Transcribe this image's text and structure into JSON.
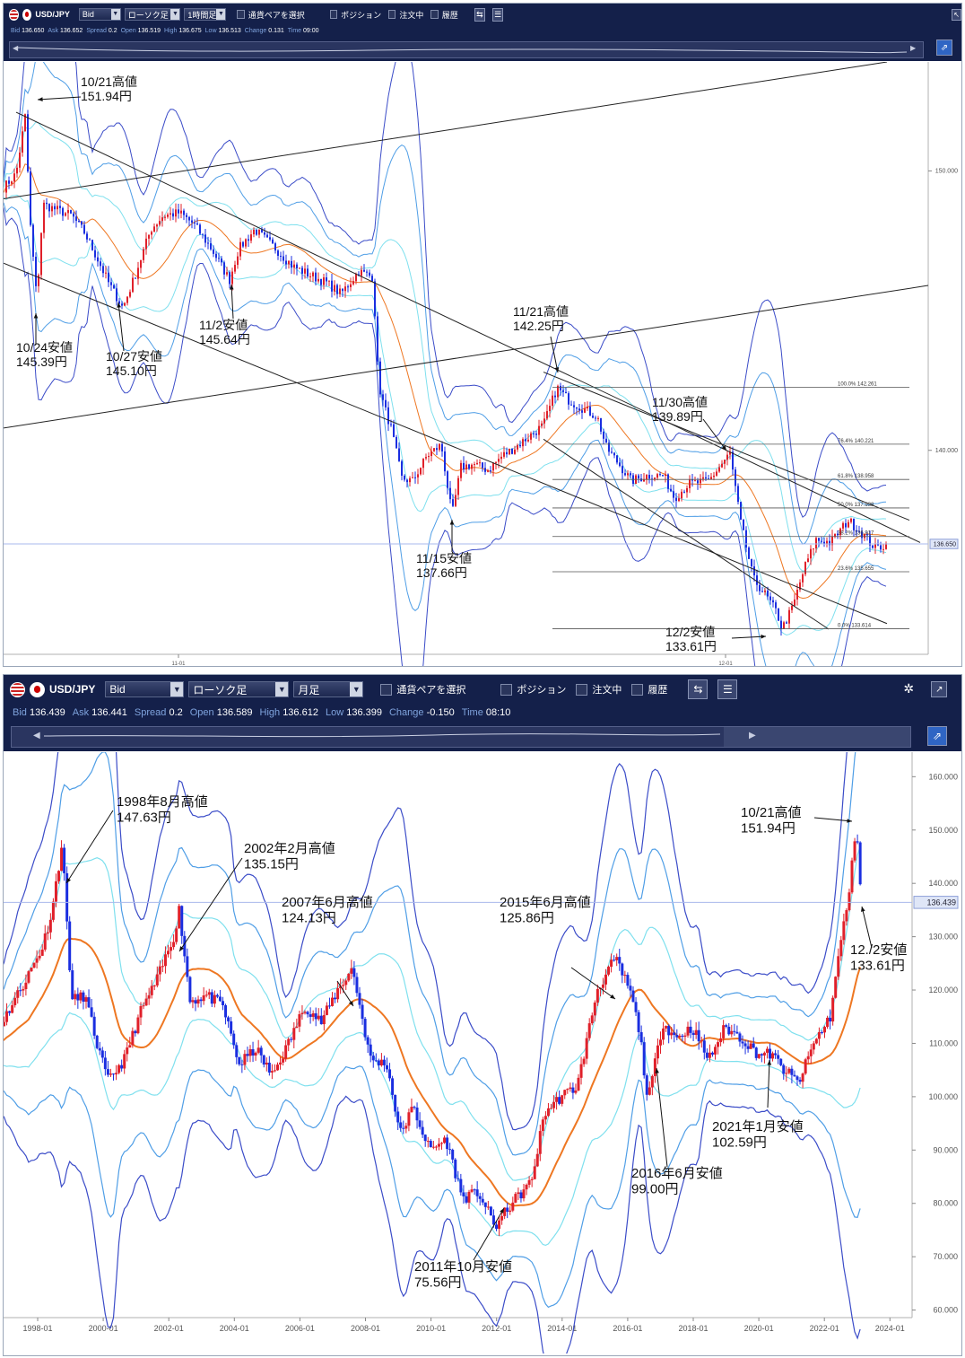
{
  "colors": {
    "toolbar_bg": "#14204a",
    "quote_key": "#7fa3dd",
    "candle_up": "#e0202a",
    "candle_down": "#1a2ee0",
    "sma": "#ee7722",
    "band1": "#7fe0ee",
    "band2": "#4f9ee6",
    "band3": "#3b4cc8",
    "price_line": "#aab8ec",
    "trend": "#222222"
  },
  "panel1": {
    "toolbar": {
      "pair": "USD/JPY",
      "side": "Bid",
      "chart_type": "ローソク足",
      "timeframe": "1時間足",
      "select_pair": "通貨ペアを選択",
      "position": "ポジション",
      "orders": "注文中",
      "history": "履歴",
      "quote": [
        {
          "k": "Bid",
          "v": "136.650"
        },
        {
          "k": "Ask",
          "v": "136.652"
        },
        {
          "k": "Spread",
          "v": "0.2"
        },
        {
          "k": "Open",
          "v": "136.519"
        },
        {
          "k": "High",
          "v": "136.675"
        },
        {
          "k": "Low",
          "v": "136.513"
        },
        {
          "k": "Change",
          "v": "0.131"
        },
        {
          "k": "Time",
          "v": "09:00"
        }
      ]
    }
  },
  "panel2": {
    "toolbar": {
      "pair": "USD/JPY",
      "side": "Bid",
      "chart_type": "ローソク足",
      "timeframe": "月足",
      "select_pair": "通貨ペアを選択",
      "position": "ポジション",
      "orders": "注文中",
      "history": "履歴",
      "quote": [
        {
          "k": "Bid",
          "v": "136.439"
        },
        {
          "k": "Ask",
          "v": "136.441"
        },
        {
          "k": "Spread",
          "v": "0.2"
        },
        {
          "k": "Open",
          "v": "136.589"
        },
        {
          "k": "High",
          "v": "136.612"
        },
        {
          "k": "Low",
          "v": "136.399"
        },
        {
          "k": "Change",
          "v": "-0.150"
        },
        {
          "k": "Time",
          "v": "08:10"
        }
      ]
    }
  },
  "chart_data": [
    {
      "type": "candlestick",
      "timeframe": "1時間足",
      "ylim": [
        132.7,
        153.9
      ],
      "y_ticks": [
        "150.000",
        "140.000"
      ],
      "x_ticks": [
        "11-01",
        "12-01"
      ],
      "current_price": "136.650",
      "bands": "bollinger bands (±1σ, ±2σ, ±3σ) with SMA",
      "path": [
        [
          0,
          149.4
        ],
        [
          14,
          149.9
        ],
        [
          24,
          151.94
        ],
        [
          30,
          148.0
        ],
        [
          37,
          145.39
        ],
        [
          44,
          148.8
        ],
        [
          60,
          148.6
        ],
        [
          76,
          148.4
        ],
        [
          90,
          147.8
        ],
        [
          104,
          146.9
        ],
        [
          117,
          146.0
        ],
        [
          133,
          145.1
        ],
        [
          146,
          146.2
        ],
        [
          164,
          147.9
        ],
        [
          178,
          148.4
        ],
        [
          196,
          148.5
        ],
        [
          212,
          148.1
        ],
        [
          232,
          147.2
        ],
        [
          252,
          146.1
        ],
        [
          262,
          147.2
        ],
        [
          280,
          147.9
        ],
        [
          304,
          147.2
        ],
        [
          322,
          146.6
        ],
        [
          340,
          146.3
        ],
        [
          360,
          146.0
        ],
        [
          376,
          145.6
        ],
        [
          396,
          146.4
        ],
        [
          412,
          146.2
        ],
        [
          418,
          142.4
        ],
        [
          424,
          141.6
        ],
        [
          432,
          140.8
        ],
        [
          444,
          139.0
        ],
        [
          456,
          138.9
        ],
        [
          472,
          139.8
        ],
        [
          488,
          140.2
        ],
        [
          500,
          137.66
        ],
        [
          510,
          139.4
        ],
        [
          524,
          139.5
        ],
        [
          540,
          139.3
        ],
        [
          556,
          139.8
        ],
        [
          570,
          140.1
        ],
        [
          586,
          140.5
        ],
        [
          602,
          140.9
        ],
        [
          617,
          142.25
        ],
        [
          630,
          141.8
        ],
        [
          646,
          141.5
        ],
        [
          662,
          141.2
        ],
        [
          672,
          140.1
        ],
        [
          684,
          139.6
        ],
        [
          700,
          138.9
        ],
        [
          718,
          139.1
        ],
        [
          736,
          139.1
        ],
        [
          748,
          138.3
        ],
        [
          764,
          138.8
        ],
        [
          786,
          138.9
        ],
        [
          810,
          139.89
        ],
        [
          822,
          137.4
        ],
        [
          836,
          135.4
        ],
        [
          848,
          134.9
        ],
        [
          862,
          134.2
        ],
        [
          868,
          133.61
        ],
        [
          880,
          134.4
        ],
        [
          893,
          135.8
        ],
        [
          906,
          136.8
        ],
        [
          922,
          136.7
        ],
        [
          942,
          137.5
        ],
        [
          958,
          137.0
        ],
        [
          972,
          136.5
        ],
        [
          986,
          136.65
        ]
      ],
      "fibonacci": [
        {
          "label": "100.0%",
          "value": "142.261"
        },
        {
          "label": "76.4%",
          "value": "140.221"
        },
        {
          "label": "61.8%",
          "value": "138.958"
        },
        {
          "label": "50.0%",
          "value": "137.938"
        },
        {
          "label": "38.2%",
          "value": "136.917"
        },
        {
          "label": "23.6%",
          "value": "135.655"
        },
        {
          "label": "0.0%",
          "value": "133.614"
        }
      ],
      "annotations": [
        {
          "lines": [
            "10/21高値",
            "151.94円"
          ],
          "value": 151.94
        },
        {
          "lines": [
            "10/24安値",
            "145.39円"
          ],
          "value": 145.39
        },
        {
          "lines": [
            "10/27安値",
            "145.10円"
          ],
          "value": 145.1
        },
        {
          "lines": [
            "11/2安値",
            "145.64円"
          ],
          "value": 145.64
        },
        {
          "lines": [
            "11/21高値",
            "142.25円"
          ],
          "value": 142.25
        },
        {
          "lines": [
            "11/30高値",
            "139.89円"
          ],
          "value": 139.89
        },
        {
          "lines": [
            "11/15安値",
            "137.66円"
          ],
          "value": 137.66
        },
        {
          "lines": [
            "12/2安値",
            "133.61円"
          ],
          "value": 133.61
        }
      ]
    },
    {
      "type": "candlestick",
      "timeframe": "月足",
      "ylim": [
        56.9,
        164.6
      ],
      "y_ticks": [
        "160.000",
        "150.000",
        "140.000",
        "130.000",
        "120.000",
        "110.000",
        "100.000",
        "90.000",
        "80.000",
        "70.000",
        "60.000"
      ],
      "x_ticks": [
        "1998-01",
        "2000-01",
        "2002-01",
        "2004-01",
        "2006-01",
        "2008-01",
        "2010-01",
        "2012-01",
        "2014-01",
        "2016-01",
        "2018-01",
        "2020-01",
        "2022-01",
        "2024-01"
      ],
      "current_price": "136.439",
      "bands": "bollinger bands (±1σ, ±2σ, ±3σ) with SMA",
      "path": [
        [
          1996.0,
          108.0
        ],
        [
          1996.6,
          112.0
        ],
        [
          1997.0,
          116.5
        ],
        [
          1997.5,
          122.0
        ],
        [
          1998.0,
          128.0
        ],
        [
          1998.3,
          135.0
        ],
        [
          1998.6,
          147.63
        ],
        [
          1998.9,
          118.0
        ],
        [
          1999.3,
          119.0
        ],
        [
          1999.7,
          109.0
        ],
        [
          2000.0,
          103.0
        ],
        [
          2000.5,
          107.0
        ],
        [
          2001.0,
          116.0
        ],
        [
          2001.5,
          122.0
        ],
        [
          2002.0,
          130.0
        ],
        [
          2002.17,
          135.15
        ],
        [
          2002.5,
          118.0
        ],
        [
          2003.0,
          119.0
        ],
        [
          2003.5,
          117.0
        ],
        [
          2004.0,
          106.0
        ],
        [
          2004.5,
          109.0
        ],
        [
          2005.0,
          104.0
        ],
        [
          2005.5,
          110.0
        ],
        [
          2006.0,
          117.0
        ],
        [
          2006.5,
          114.0
        ],
        [
          2007.0,
          120.0
        ],
        [
          2007.45,
          124.13
        ],
        [
          2007.8,
          113.0
        ],
        [
          2008.0,
          107.0
        ],
        [
          2008.5,
          106.0
        ],
        [
          2008.9,
          93.0
        ],
        [
          2009.3,
          98.0
        ],
        [
          2009.8,
          90.0
        ],
        [
          2010.3,
          92.0
        ],
        [
          2010.8,
          81.0
        ],
        [
          2011.3,
          82.0
        ],
        [
          2011.79,
          75.56
        ],
        [
          2012.3,
          80.0
        ],
        [
          2012.9,
          84.0
        ],
        [
          2013.3,
          97.0
        ],
        [
          2013.8,
          100.0
        ],
        [
          2014.3,
          102.0
        ],
        [
          2014.9,
          120.0
        ],
        [
          2015.45,
          125.86
        ],
        [
          2015.9,
          120.0
        ],
        [
          2016.2,
          112.0
        ],
        [
          2016.45,
          99.0
        ],
        [
          2016.9,
          114.0
        ],
        [
          2017.3,
          111.0
        ],
        [
          2017.8,
          113.0
        ],
        [
          2018.3,
          107.0
        ],
        [
          2018.8,
          113.0
        ],
        [
          2019.3,
          111.0
        ],
        [
          2019.8,
          108.0
        ],
        [
          2020.2,
          108.0
        ],
        [
          2020.6,
          105.0
        ],
        [
          2021.04,
          102.59
        ],
        [
          2021.5,
          110.0
        ],
        [
          2022.0,
          115.0
        ],
        [
          2022.3,
          128.0
        ],
        [
          2022.6,
          139.0
        ],
        [
          2022.8,
          151.94
        ],
        [
          2022.95,
          136.44
        ]
      ],
      "annotations": [
        {
          "lines": [
            "1998年8月高値",
            "147.63円"
          ],
          "value": 147.63
        },
        {
          "lines": [
            "2002年2月高値",
            "135.15円"
          ],
          "value": 135.15
        },
        {
          "lines": [
            "2007年6月高値",
            "124.13円"
          ],
          "value": 124.13
        },
        {
          "lines": [
            "2015年6月高値",
            "125.86円"
          ],
          "value": 125.86
        },
        {
          "lines": [
            "10/21高値",
            "151.94円"
          ],
          "value": 151.94
        },
        {
          "lines": [
            "12./2安値",
            "133.61円"
          ],
          "value": 133.61
        },
        {
          "lines": [
            "2021年1月安値",
            "102.59円"
          ],
          "value": 102.59
        },
        {
          "lines": [
            "2016年6月安値",
            "99.00円"
          ],
          "value": 99.0
        },
        {
          "lines": [
            "2011年10月安値",
            "75.56円"
          ],
          "value": 75.56
        }
      ]
    }
  ]
}
